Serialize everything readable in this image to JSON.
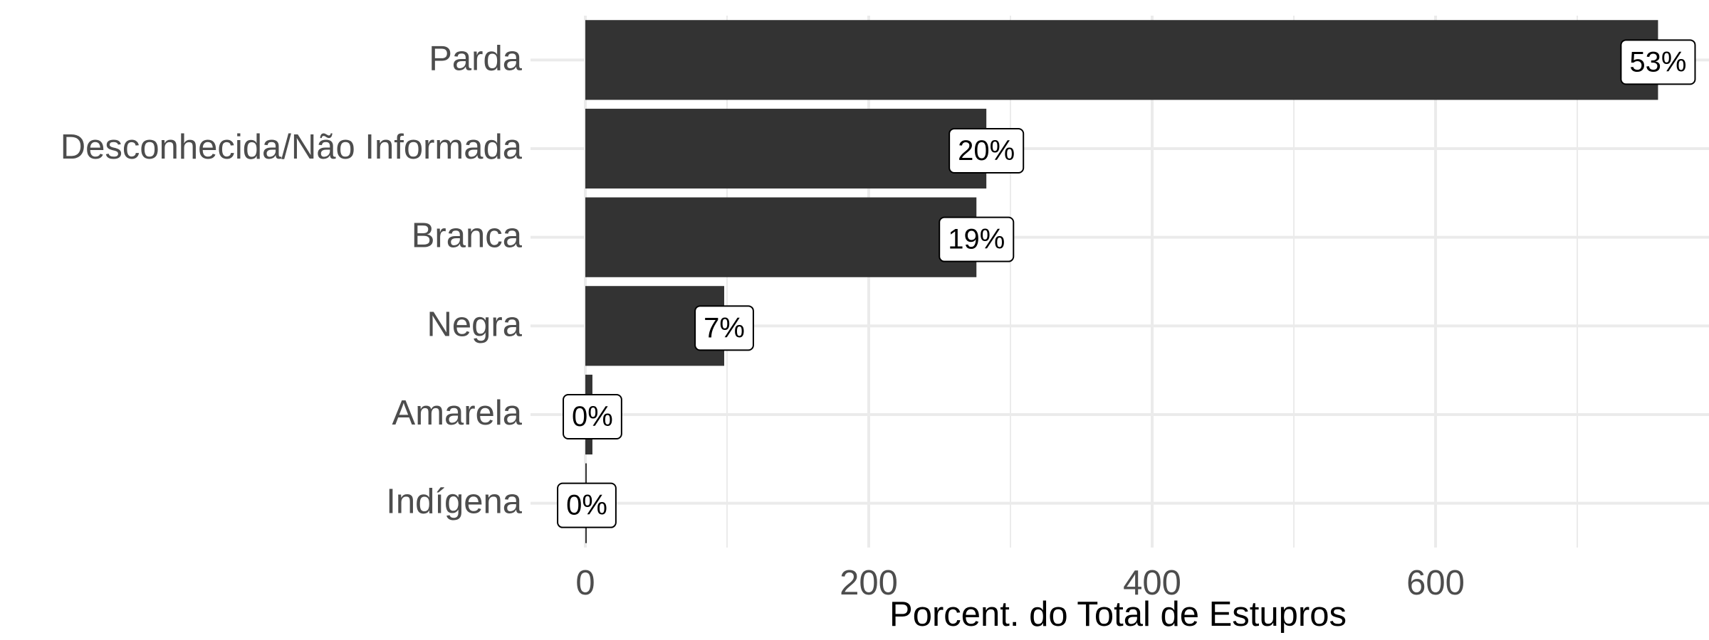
{
  "chart_data": {
    "type": "bar",
    "orientation": "horizontal",
    "categories": [
      "Parda",
      "Desconhecida/Não Informada",
      "Branca",
      "Negra",
      "Amarela",
      "Indígena"
    ],
    "values": [
      757,
      283,
      276,
      98,
      5,
      1
    ],
    "data_labels": [
      "53%",
      "20%",
      "19%",
      "7%",
      "0%",
      "0%"
    ],
    "xlabel": "Porcent. do Total de Estupros",
    "ylabel": "",
    "xlim": [
      -40,
      790
    ],
    "x_ticks": [
      0,
      200,
      400,
      600
    ],
    "x_tick_labels": [
      "0",
      "200",
      "400",
      "600"
    ],
    "grid": true,
    "legend": "none",
    "bar_color": "#333333"
  }
}
